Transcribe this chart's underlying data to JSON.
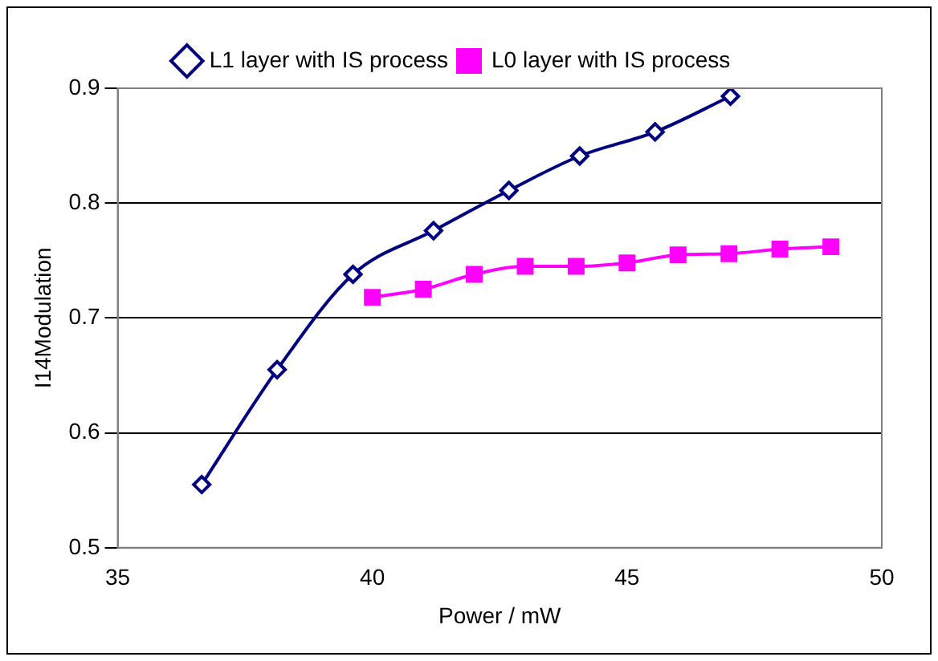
{
  "chart_data": {
    "type": "line",
    "xlabel": "Power / mW",
    "ylabel": "I14Modulation",
    "xlim": [
      35,
      50
    ],
    "xticks": [
      35,
      40,
      45,
      50
    ],
    "ylim": [
      0.5,
      0.9
    ],
    "yticks": [
      0.5,
      0.6,
      0.7,
      0.8,
      0.9
    ],
    "grid": "y",
    "legend": "top",
    "series": [
      {
        "name": "L1 layer with IS process",
        "color": "#000080",
        "marker": "diamond",
        "x": [
          36.65,
          38.13,
          39.62,
          41.2,
          42.68,
          44.07,
          45.55,
          47.03
        ],
        "values": [
          0.555,
          0.655,
          0.738,
          0.776,
          0.811,
          0.841,
          0.862,
          0.893
        ]
      },
      {
        "name": "L0 layer with IS process",
        "color": "#ff00ff",
        "marker": "square",
        "x": [
          40,
          41,
          42,
          43,
          44,
          45,
          46,
          47,
          48,
          49
        ],
        "values": [
          0.718,
          0.725,
          0.738,
          0.745,
          0.745,
          0.748,
          0.755,
          0.756,
          0.76,
          0.762
        ]
      }
    ]
  }
}
